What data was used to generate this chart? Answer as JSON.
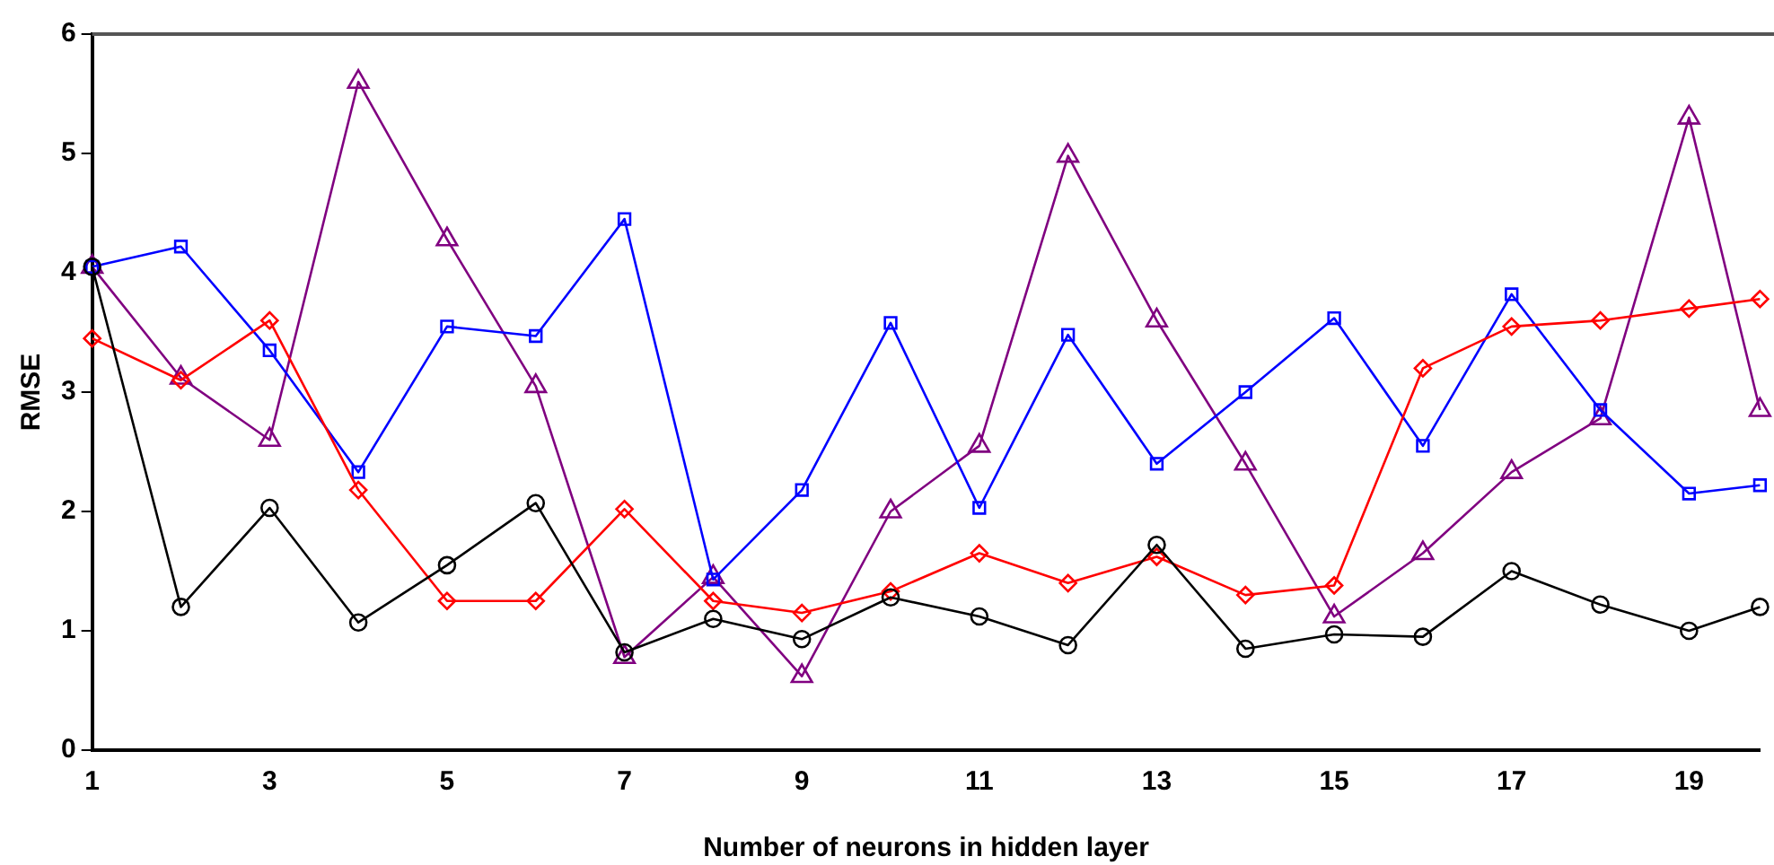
{
  "chart_data": {
    "type": "line",
    "xlabel": "Number of neurons in hidden layer",
    "ylabel": "RMSE",
    "x": [
      1,
      2,
      3,
      4,
      5,
      6,
      7,
      8,
      9,
      10,
      11,
      12,
      13,
      14,
      15,
      16,
      17,
      18,
      19,
      19.8
    ],
    "xlim": [
      1,
      19.8
    ],
    "xticks": [
      1,
      3,
      5,
      7,
      9,
      11,
      13,
      15,
      17,
      19
    ],
    "ylim": [
      0,
      6
    ],
    "yticks": [
      0,
      1,
      2,
      3,
      4,
      5,
      6
    ],
    "grid": false,
    "legend": false,
    "series": [
      {
        "color": "#000000",
        "marker": "circle",
        "values": [
          4.05,
          1.2,
          2.03,
          1.07,
          1.55,
          2.07,
          0.82,
          1.1,
          0.93,
          1.28,
          1.12,
          0.88,
          1.72,
          0.85,
          0.97,
          0.95,
          1.5,
          1.22,
          1.0,
          1.2
        ]
      },
      {
        "color": "#ff0000",
        "marker": "diamond",
        "values": [
          3.45,
          3.1,
          3.6,
          2.18,
          1.25,
          1.25,
          2.02,
          1.25,
          1.15,
          1.33,
          1.65,
          1.4,
          1.62,
          1.3,
          1.38,
          3.2,
          3.55,
          3.6,
          3.7,
          3.78
        ]
      },
      {
        "color": "#0000ff",
        "marker": "square",
        "values": [
          4.05,
          4.22,
          3.35,
          2.33,
          3.55,
          3.47,
          4.45,
          1.43,
          2.18,
          3.58,
          2.03,
          3.48,
          2.4,
          3.0,
          3.62,
          2.55,
          3.82,
          2.85,
          2.15,
          2.22
        ]
      },
      {
        "color": "#800080",
        "marker": "triangle",
        "values": [
          4.05,
          3.12,
          2.6,
          5.6,
          4.28,
          3.05,
          0.78,
          1.45,
          0.62,
          2.0,
          2.55,
          4.98,
          3.6,
          2.4,
          1.12,
          1.65,
          2.33,
          2.78,
          5.3,
          2.85
        ]
      }
    ]
  }
}
